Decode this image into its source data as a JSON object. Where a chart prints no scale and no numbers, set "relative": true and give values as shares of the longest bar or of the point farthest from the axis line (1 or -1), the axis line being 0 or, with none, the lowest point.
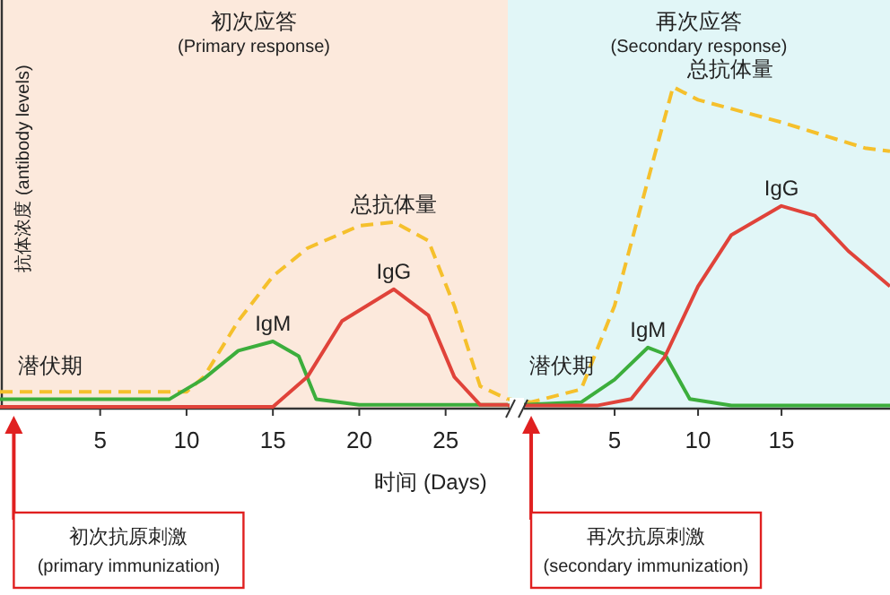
{
  "chart_data": [
    {
      "type": "line",
      "relative": true,
      "xlabel": "时间 (Days)",
      "ylabel": "抗体浓度 (antibody levels)",
      "xlim": [
        -0.8,
        28.6
      ],
      "xticks": [
        5,
        10,
        15,
        20,
        25
      ],
      "bands": [
        {
          "axis": "x",
          "from": -0.8,
          "to": 28.6,
          "label": "初次应答\n(Primary response)",
          "color": "#fce9dc"
        }
      ],
      "series": [
        {
          "name": "总抗体量",
          "color": "#f5c02c",
          "line_style": "dashed",
          "x": [
            -0.8,
            10,
            11,
            13,
            15,
            17,
            20,
            22,
            24,
            25.5,
            27,
            28.6
          ],
          "values": [
            0.09,
            0.09,
            0.17,
            0.47,
            0.71,
            0.86,
            0.98,
            1,
            0.9,
            0.55,
            0.12,
            0.05
          ]
        },
        {
          "name": "IgM",
          "color": "#3cae3c",
          "line_style": "solid",
          "x": [
            -0.8,
            9,
            11,
            13,
            15,
            16.5,
            17.5,
            20,
            28.6
          ],
          "values": [
            0.05,
            0.05,
            0.16,
            0.31,
            0.36,
            0.28,
            0.05,
            0.02,
            0.02
          ]
        },
        {
          "name": "IgG",
          "color": "#e0433a",
          "line_style": "solid",
          "x": [
            -0.8,
            15,
            17,
            19,
            22,
            24,
            25.5,
            27,
            28.6
          ],
          "values": [
            0.01,
            0.01,
            0.17,
            0.47,
            0.64,
            0.5,
            0.17,
            0.02,
            0.02
          ]
        }
      ],
      "annotations": [
        "潜伏期",
        "初次抗原刺激\n(primary immunization)"
      ]
    },
    {
      "type": "line",
      "relative": true,
      "xlim": [
        -1.4,
        21.5
      ],
      "xticks": [
        5,
        10,
        15
      ],
      "bands": [
        {
          "axis": "x",
          "from": -1.4,
          "to": 21.5,
          "label": "再次应答\n(Secondary response)",
          "color": "#e1f6f7"
        }
      ],
      "series": [
        {
          "name": "总抗体量",
          "color": "#f5c02c",
          "line_style": "dashed",
          "x": [
            -1.4,
            0,
            3,
            5,
            7,
            8.5,
            10,
            15,
            20,
            21.5
          ],
          "values": [
            0.03,
            0.02,
            0.06,
            0.32,
            0.71,
            1.0,
            0.96,
            0.89,
            0.81,
            0.8
          ]
        },
        {
          "name": "IgM",
          "color": "#3cae3c",
          "line_style": "solid",
          "x": [
            -1.4,
            3,
            5,
            7,
            8,
            9.5,
            12,
            21.5
          ],
          "values": [
            0.01,
            0.02,
            0.09,
            0.19,
            0.17,
            0.03,
            0.01,
            0.01
          ]
        },
        {
          "name": "IgG",
          "color": "#e0433a",
          "line_style": "solid",
          "x": [
            -1.4,
            4,
            6,
            8,
            10,
            12,
            15,
            17,
            19,
            21.5
          ],
          "values": [
            0.01,
            0.01,
            0.03,
            0.16,
            0.38,
            0.54,
            0.63,
            0.6,
            0.49,
            0.38
          ]
        }
      ],
      "annotations": [
        "潜伏期",
        "再次抗原刺激\n(secondary immunization)"
      ]
    }
  ]
}
